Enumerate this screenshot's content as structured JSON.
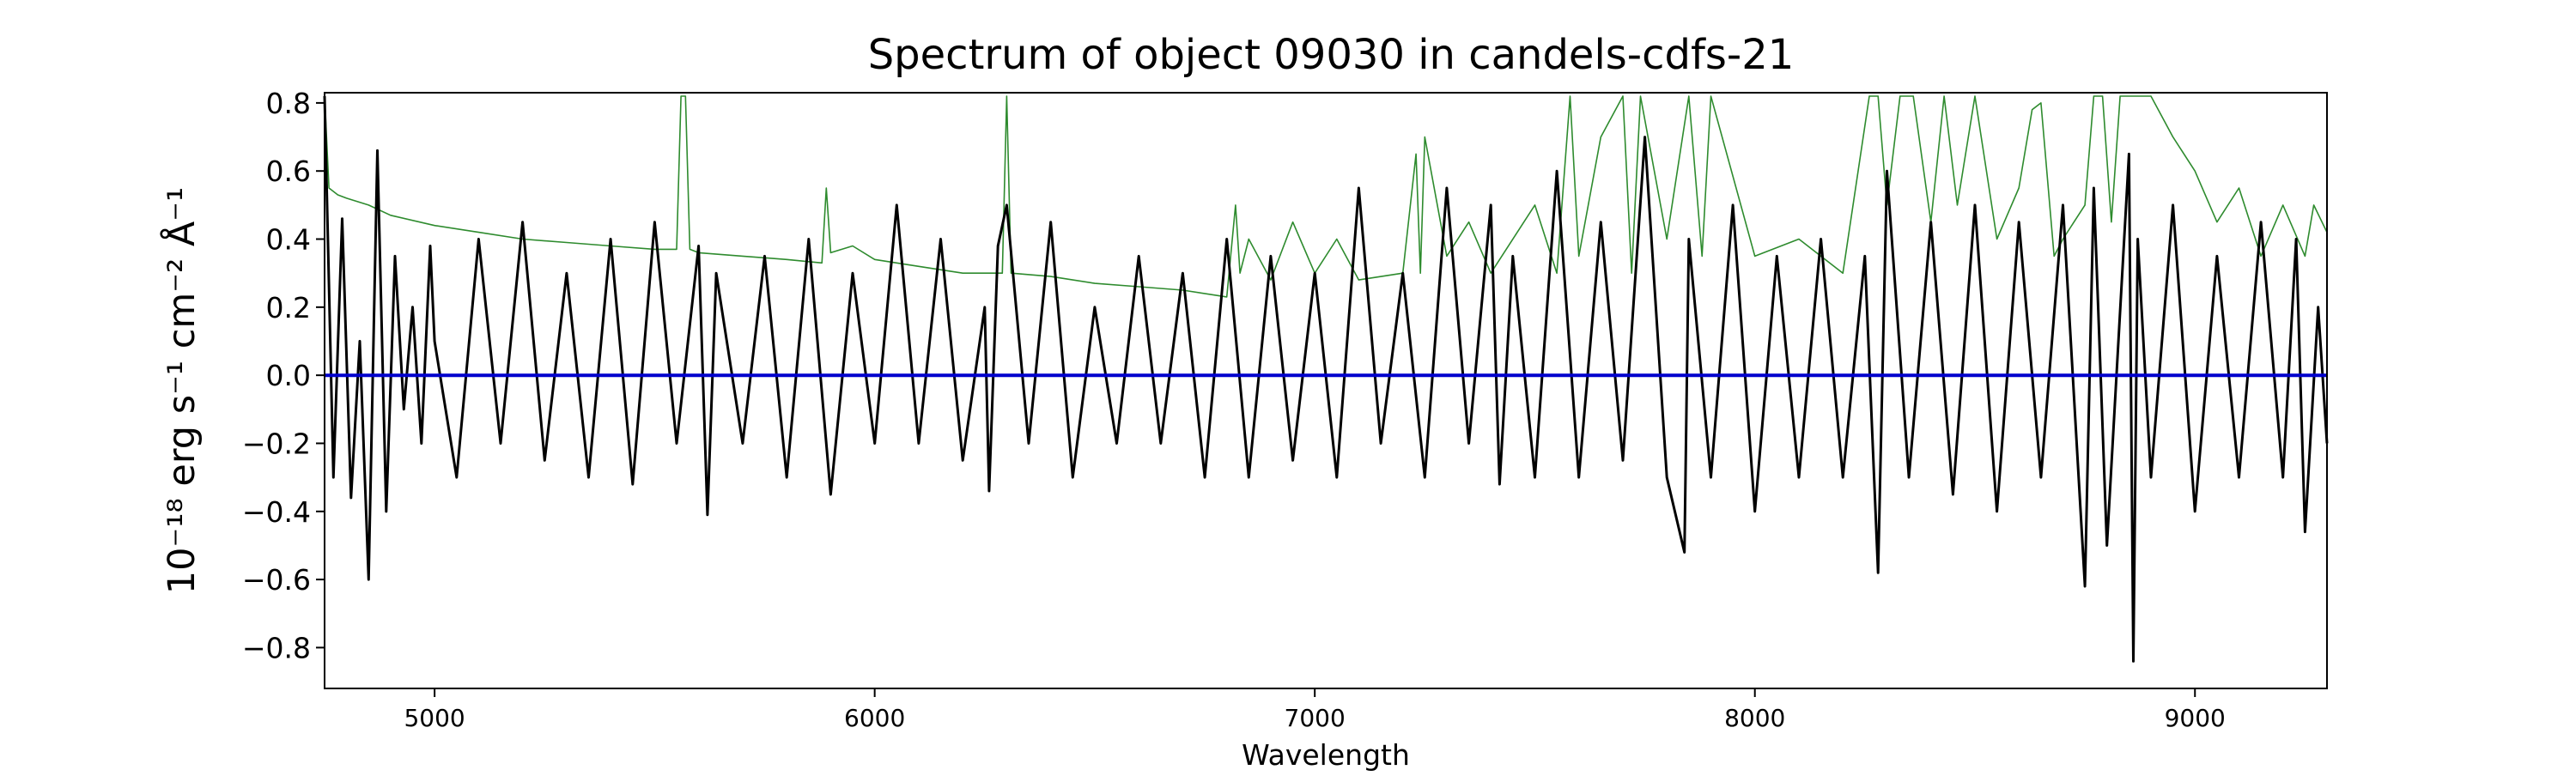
{
  "chart_data": {
    "type": "line",
    "title": "Spectrum of object 09030 in candels-cdfs-21",
    "xlabel": "Wavelength",
    "ylabel": "10⁻¹⁸ erg s⁻¹ cm⁻² Å⁻¹",
    "xlim": [
      4750,
      9300
    ],
    "ylim": [
      -0.92,
      0.83
    ],
    "xticks": [
      5000,
      6000,
      7000,
      8000,
      9000
    ],
    "yticks": [
      -0.8,
      -0.6,
      -0.4,
      -0.2,
      0.0,
      0.2,
      0.4,
      0.6,
      0.8
    ],
    "ytick_labels": [
      "−0.8",
      "−0.6",
      "−0.4",
      "−0.2",
      "0.0",
      "0.2",
      "0.4",
      "0.6",
      "0.8"
    ],
    "grid": false,
    "legend": "none",
    "series": [
      {
        "color": "#000000",
        "style": "flux",
        "x": [
          4750,
          4770,
          4790,
          4810,
          4830,
          4850,
          4870,
          4890,
          4910,
          4930,
          4950,
          4970,
          4990,
          5000,
          5050,
          5100,
          5150,
          5200,
          5250,
          5300,
          5350,
          5400,
          5450,
          5500,
          5550,
          5600,
          5620,
          5640,
          5700,
          5750,
          5800,
          5850,
          5900,
          5950,
          6000,
          6050,
          6100,
          6150,
          6200,
          6250,
          6260,
          6280,
          6300,
          6350,
          6400,
          6450,
          6500,
          6550,
          6600,
          6650,
          6700,
          6750,
          6800,
          6850,
          6900,
          6950,
          7000,
          7050,
          7100,
          7150,
          7200,
          7250,
          7300,
          7350,
          7400,
          7420,
          7450,
          7500,
          7550,
          7600,
          7650,
          7700,
          7750,
          7800,
          7840,
          7850,
          7900,
          7950,
          8000,
          8050,
          8100,
          8150,
          8200,
          8250,
          8280,
          8300,
          8350,
          8400,
          8450,
          8500,
          8550,
          8600,
          8650,
          8700,
          8750,
          8770,
          8800,
          8850,
          8860,
          8870,
          8900,
          8950,
          9000,
          9050,
          9100,
          9150,
          9200,
          9230,
          9250,
          9280,
          9300
        ],
        "y": [
          0.82,
          -0.3,
          0.46,
          -0.36,
          0.1,
          -0.6,
          0.66,
          -0.4,
          0.35,
          -0.1,
          0.2,
          -0.2,
          0.38,
          0.1,
          -0.3,
          0.4,
          -0.2,
          0.45,
          -0.25,
          0.3,
          -0.3,
          0.4,
          -0.32,
          0.45,
          -0.2,
          0.38,
          -0.41,
          0.3,
          -0.2,
          0.35,
          -0.3,
          0.4,
          -0.35,
          0.3,
          -0.2,
          0.5,
          -0.2,
          0.4,
          -0.25,
          0.2,
          -0.34,
          0.38,
          0.5,
          -0.2,
          0.45,
          -0.3,
          0.2,
          -0.2,
          0.35,
          -0.2,
          0.3,
          -0.3,
          0.4,
          -0.3,
          0.35,
          -0.25,
          0.3,
          -0.3,
          0.55,
          -0.2,
          0.3,
          -0.3,
          0.55,
          -0.2,
          0.5,
          -0.32,
          0.35,
          -0.3,
          0.6,
          -0.3,
          0.45,
          -0.25,
          0.7,
          -0.3,
          -0.52,
          0.4,
          -0.3,
          0.5,
          -0.4,
          0.35,
          -0.3,
          0.4,
          -0.3,
          0.35,
          -0.58,
          0.6,
          -0.3,
          0.45,
          -0.35,
          0.5,
          -0.4,
          0.45,
          -0.3,
          0.5,
          -0.62,
          0.55,
          -0.5,
          0.65,
          -0.84,
          0.4,
          -0.3,
          0.5,
          -0.4,
          0.35,
          -0.3,
          0.45,
          -0.3,
          0.4,
          -0.46,
          0.2,
          -0.2
        ]
      },
      {
        "color": "#2e8b2e",
        "style": "error",
        "x": [
          4750,
          4760,
          4780,
          4800,
          4850,
          4900,
          5000,
          5100,
          5200,
          5300,
          5400,
          5500,
          5550,
          5560,
          5570,
          5580,
          5600,
          5700,
          5800,
          5880,
          5890,
          5900,
          5950,
          6000,
          6100,
          6200,
          6290,
          6300,
          6310,
          6400,
          6500,
          6600,
          6700,
          6800,
          6820,
          6830,
          6850,
          6900,
          6950,
          7000,
          7050,
          7100,
          7200,
          7230,
          7240,
          7250,
          7300,
          7350,
          7400,
          7500,
          7550,
          7580,
          7600,
          7650,
          7700,
          7720,
          7740,
          7800,
          7850,
          7880,
          7900,
          8000,
          8100,
          8200,
          8260,
          8280,
          8300,
          8330,
          8360,
          8400,
          8430,
          8460,
          8500,
          8550,
          8600,
          8630,
          8650,
          8680,
          8700,
          8750,
          8770,
          8790,
          8810,
          8830,
          8860,
          8880,
          8900,
          8950,
          9000,
          9050,
          9100,
          9150,
          9200,
          9250,
          9270,
          9300
        ],
        "y": [
          0.82,
          0.55,
          0.53,
          0.52,
          0.5,
          0.47,
          0.44,
          0.42,
          0.4,
          0.39,
          0.38,
          0.37,
          0.37,
          0.82,
          0.82,
          0.37,
          0.36,
          0.35,
          0.34,
          0.33,
          0.55,
          0.36,
          0.38,
          0.34,
          0.32,
          0.3,
          0.3,
          0.82,
          0.3,
          0.29,
          0.27,
          0.26,
          0.25,
          0.23,
          0.5,
          0.3,
          0.4,
          0.28,
          0.45,
          0.3,
          0.4,
          0.28,
          0.3,
          0.65,
          0.3,
          0.7,
          0.35,
          0.45,
          0.3,
          0.5,
          0.3,
          0.82,
          0.35,
          0.7,
          0.82,
          0.3,
          0.82,
          0.4,
          0.82,
          0.35,
          0.82,
          0.35,
          0.4,
          0.3,
          0.82,
          0.82,
          0.5,
          0.82,
          0.82,
          0.45,
          0.82,
          0.5,
          0.82,
          0.4,
          0.55,
          0.78,
          0.8,
          0.35,
          0.4,
          0.5,
          0.82,
          0.82,
          0.45,
          0.82,
          0.82,
          0.82,
          0.82,
          0.7,
          0.6,
          0.45,
          0.55,
          0.35,
          0.5,
          0.35,
          0.5,
          0.42
        ]
      },
      {
        "color": "#0000cd",
        "style": "zero-line",
        "x": [
          4750,
          9300
        ],
        "y": [
          0.0,
          0.0
        ]
      }
    ]
  }
}
